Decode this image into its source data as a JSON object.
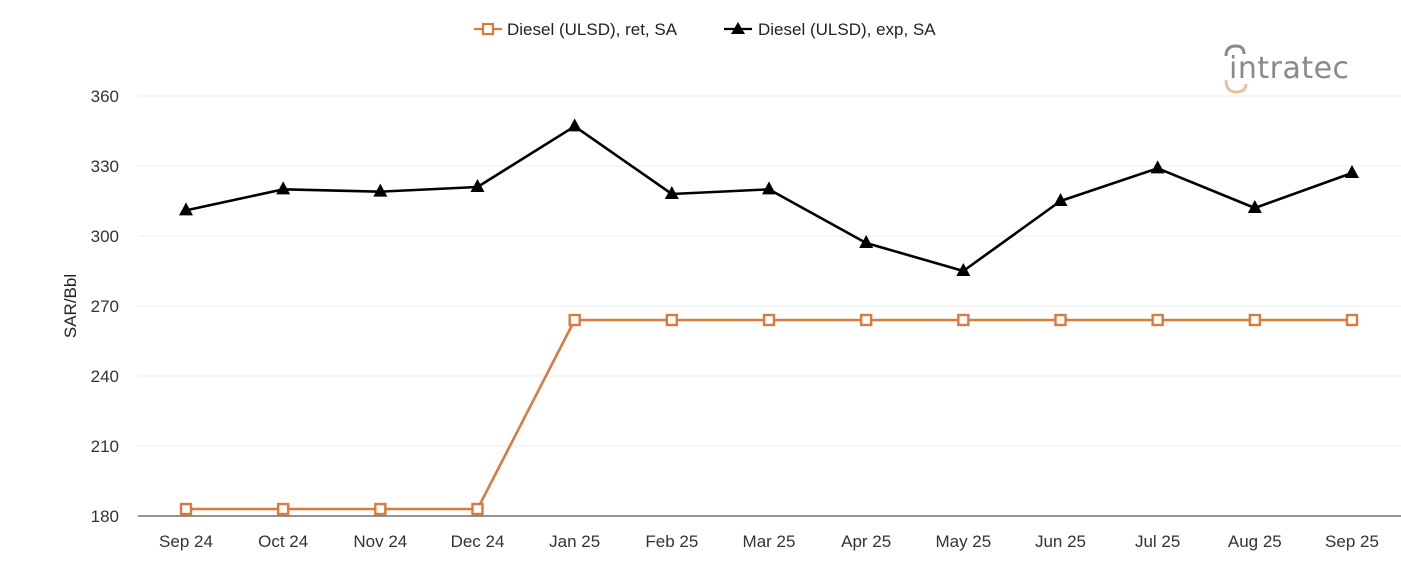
{
  "chart_data": {
    "type": "line",
    "title": "",
    "xlabel": "",
    "ylabel": "SAR/Bbl",
    "ylim": [
      180,
      360
    ],
    "yticks": [
      180,
      210,
      240,
      270,
      300,
      330,
      360
    ],
    "grid": true,
    "legend_position": "top",
    "categories": [
      "Sep 24",
      "Oct 24",
      "Nov 24",
      "Dec 24",
      "Jan 25",
      "Feb 25",
      "Mar 25",
      "Apr 25",
      "May 25",
      "Jun 25",
      "Jul 25",
      "Aug 25",
      "Sep 25"
    ],
    "series": [
      {
        "name": "Diesel (ULSD), ret, SA",
        "marker": "square-open",
        "color": "#D97B3F",
        "values": [
          183,
          183,
          183,
          183,
          264,
          264,
          264,
          264,
          264,
          264,
          264,
          264,
          264
        ]
      },
      {
        "name": "Diesel (ULSD), exp, SA",
        "marker": "triangle-filled",
        "color": "#000000",
        "values": [
          311,
          320,
          319,
          321,
          347,
          318,
          320,
          297,
          285,
          315,
          329,
          312,
          327
        ]
      }
    ]
  },
  "legend": {
    "items": [
      {
        "label": "Diesel (ULSD), ret, SA"
      },
      {
        "label": "Diesel (ULSD), exp, SA"
      }
    ]
  },
  "logo": {
    "text": "intratec"
  },
  "colors": {
    "grid": "#ececec",
    "axis": "#555555",
    "logo_gray": "#8a8a8a",
    "logo_accent": "#E8C3A0"
  }
}
